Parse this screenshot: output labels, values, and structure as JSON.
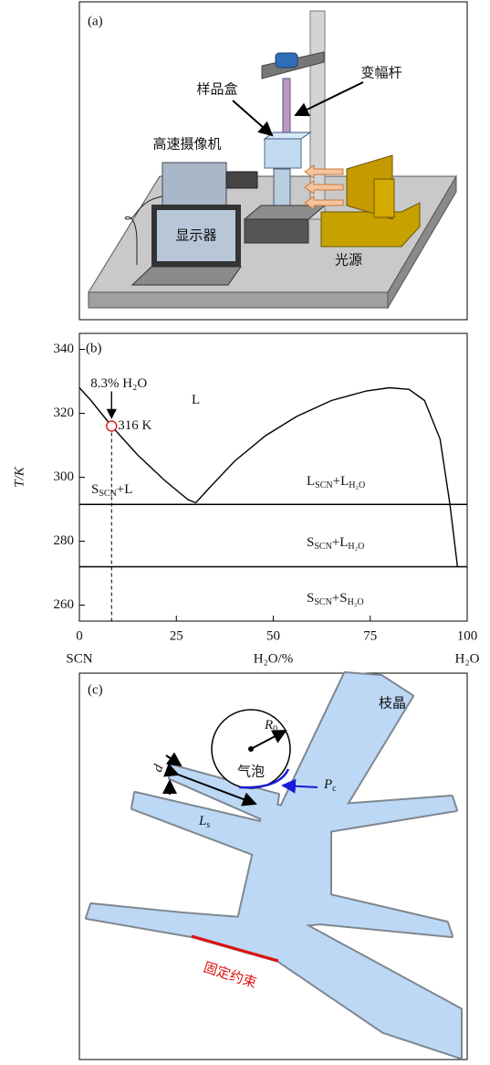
{
  "panel_a": {
    "label": "(a)",
    "horn": "变幅杆",
    "sample_box": "样品盒",
    "camera": "高速摄像机",
    "monitor": "显示器",
    "light_source": "光源"
  },
  "chart_data": {
    "type": "line",
    "panel_label": "(b)",
    "ylabel": "T/K",
    "xlabel": "H₂O/%",
    "x_end_labels": [
      "SCN",
      "H₂O"
    ],
    "xlim": [
      0,
      100
    ],
    "ylim": [
      255,
      345
    ],
    "xticks": [
      0,
      25,
      50,
      75,
      100
    ],
    "yticks": [
      260,
      280,
      300,
      320,
      340
    ],
    "series": [
      {
        "color": "#000000",
        "x": [
          0,
          3,
          8.3,
          15,
          22,
          28,
          30
        ],
        "values": [
          328,
          324,
          316,
          307,
          299,
          293,
          292
        ]
      },
      {
        "color": "#000000",
        "x": [
          30,
          33,
          40,
          48,
          56,
          65,
          74,
          80,
          85,
          89,
          93,
          95.5,
          97.5
        ],
        "values": [
          292,
          296,
          305,
          313,
          319,
          324,
          327,
          328,
          327.5,
          324,
          312,
          292,
          272
        ]
      },
      {
        "color": "#000000",
        "x": [
          0,
          100
        ],
        "values": [
          291.5,
          291.5
        ]
      },
      {
        "color": "#000000",
        "x": [
          0,
          100
        ],
        "values": [
          272,
          272
        ]
      }
    ],
    "point": {
      "x": 8.3,
      "y": 316,
      "color": "#e0221b",
      "dashed_line": true
    },
    "annotations": {
      "composition": "8.3% H₂O",
      "temperature": "316 K"
    },
    "regions": [
      [
        "L"
      ],
      [
        "S",
        "SCN",
        "+L"
      ],
      [
        "L",
        "SCN",
        "+L",
        "H₂O"
      ],
      [
        "S",
        "SCN",
        "+L",
        "H₂O"
      ],
      [
        "S",
        "SCN",
        "+S",
        "H₂O"
      ]
    ]
  },
  "panel_c": {
    "label": "(c)",
    "dendrite": "枝晶",
    "bubble": "气泡",
    "radius": {
      "main": "R",
      "sub": "0"
    },
    "thickness": "d",
    "spacing": {
      "main": "L",
      "sub": "s"
    },
    "pressure": {
      "main": "P",
      "sub": "c"
    },
    "constraint": "固定约束"
  }
}
